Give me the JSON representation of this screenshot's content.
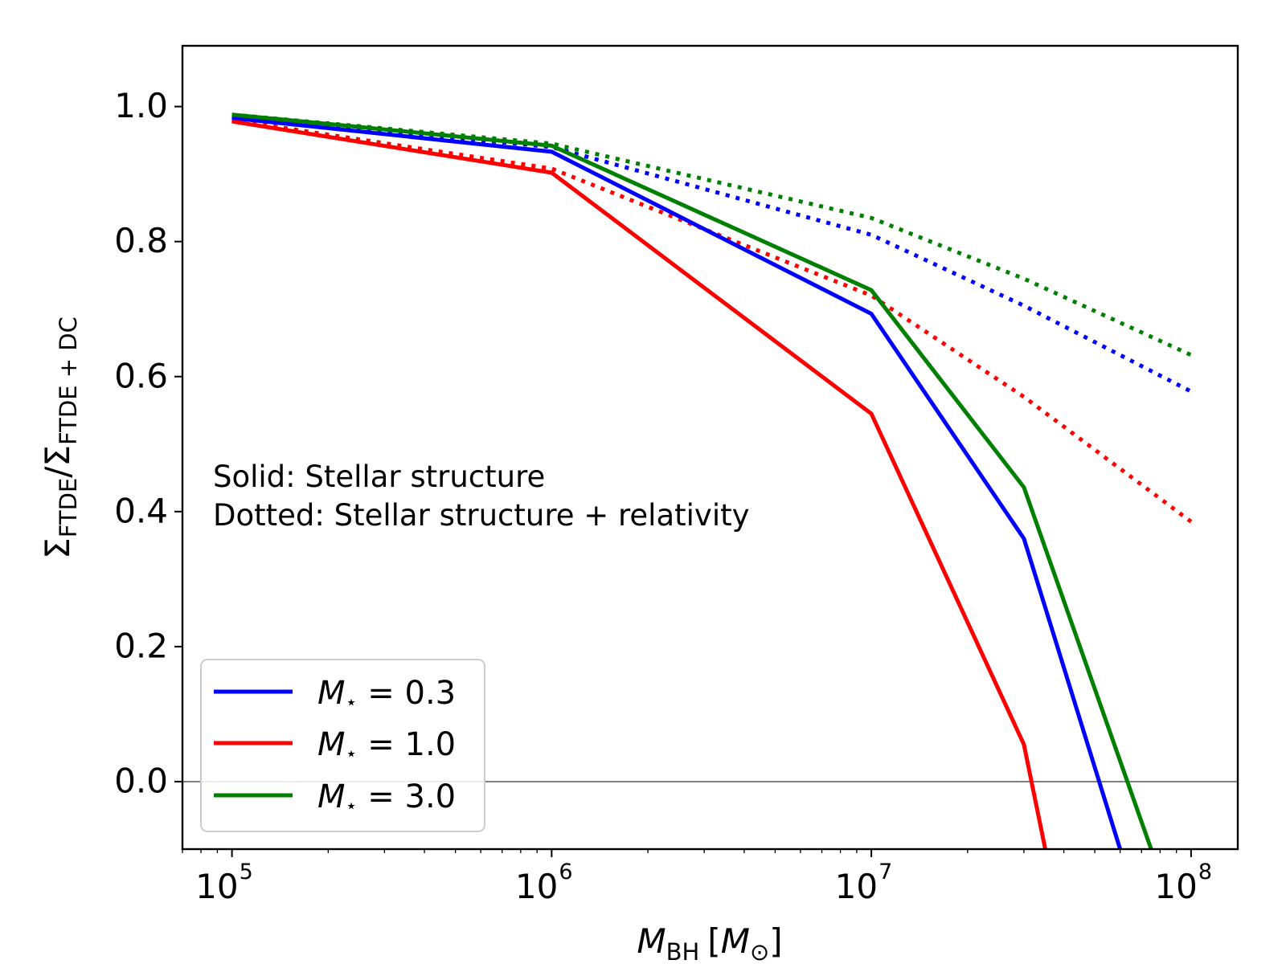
{
  "chart_data": {
    "type": "line",
    "title": "",
    "xlabel": {
      "base": "M",
      "sub": "BH",
      "unit_base": "M",
      "unit_sub": "⊙"
    },
    "ylabel": {
      "num_base": "Σ",
      "num_sub": "FTDE",
      "slash": "/",
      "den_base": "Σ",
      "den_sub": "FTDE + DC"
    },
    "xscale": "log",
    "xlim": [
      70000,
      140000000
    ],
    "ylim": [
      -0.1,
      1.09
    ],
    "xticks": [
      {
        "value": 100000,
        "base": "10",
        "exp": "5"
      },
      {
        "value": 1000000,
        "base": "10",
        "exp": "6"
      },
      {
        "value": 10000000,
        "base": "10",
        "exp": "7"
      },
      {
        "value": 100000000,
        "base": "10",
        "exp": "8"
      }
    ],
    "yticks": [
      {
        "value": 0.0,
        "label": "0.0"
      },
      {
        "value": 0.2,
        "label": "0.2"
      },
      {
        "value": 0.4,
        "label": "0.4"
      },
      {
        "value": 0.6,
        "label": "0.6"
      },
      {
        "value": 0.8,
        "label": "0.8"
      },
      {
        "value": 1.0,
        "label": "1.0"
      }
    ],
    "hline": {
      "y": 0.0,
      "color": "#808080"
    },
    "series": [
      {
        "name": "M⋆ = 0.3, solid",
        "color": "#0000ff",
        "style": "solid",
        "x": [
          100000,
          1000000,
          10000000,
          30000000,
          60000000
        ],
        "y": [
          0.983,
          0.933,
          0.693,
          0.36,
          -0.1
        ]
      },
      {
        "name": "M⋆ = 1.0, solid",
        "color": "#ff0000",
        "style": "solid",
        "x": [
          100000,
          1000000,
          10000000,
          30000000,
          35000000
        ],
        "y": [
          0.978,
          0.902,
          0.545,
          0.055,
          -0.1
        ]
      },
      {
        "name": "M⋆ = 3.0, solid",
        "color": "#008000",
        "style": "solid",
        "x": [
          100000,
          1000000,
          10000000,
          30000000,
          75000000
        ],
        "y": [
          0.988,
          0.942,
          0.728,
          0.436,
          -0.1
        ]
      },
      {
        "name": "M⋆ = 0.3, dotted",
        "color": "#0000ff",
        "style": "dotted",
        "x": [
          100000,
          1000000,
          10000000,
          30000000,
          100000000
        ],
        "y": [
          0.985,
          0.94,
          0.81,
          0.705,
          0.578
        ]
      },
      {
        "name": "M⋆ = 1.0, dotted",
        "color": "#ff0000",
        "style": "dotted",
        "x": [
          100000,
          1000000,
          10000000,
          30000000,
          100000000
        ],
        "y": [
          0.98,
          0.908,
          0.72,
          0.57,
          0.385
        ]
      },
      {
        "name": "M⋆ = 3.0, dotted",
        "color": "#008000",
        "style": "dotted",
        "x": [
          100000,
          1000000,
          10000000,
          30000000,
          100000000
        ],
        "y": [
          0.988,
          0.945,
          0.835,
          0.745,
          0.632
        ]
      }
    ],
    "legend": {
      "placement": "lower-left",
      "entries": [
        {
          "symbol": "M",
          "sub": "⋆",
          "rest": " = 0.3",
          "color": "#0000ff"
        },
        {
          "symbol": "M",
          "sub": "⋆",
          "rest": " = 1.0",
          "color": "#ff0000"
        },
        {
          "symbol": "M",
          "sub": "⋆",
          "rest": " = 3.0",
          "color": "#008000"
        }
      ]
    },
    "annotations": [
      "Solid: Stellar structure",
      "Dotted: Stellar structure + relativity"
    ]
  }
}
